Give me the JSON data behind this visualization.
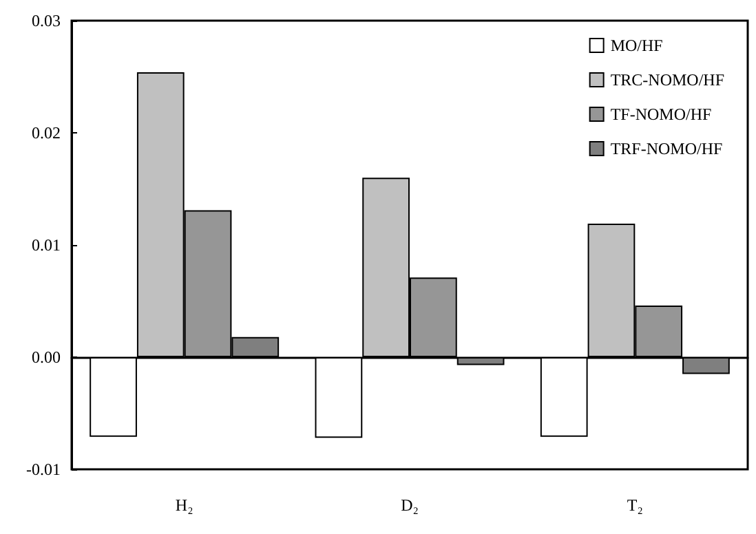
{
  "chart_data": {
    "type": "bar",
    "categories": [
      "H₂",
      "D₂",
      "T₂"
    ],
    "series": [
      {
        "name": "MO/HF",
        "color": "#ffffff",
        "values": [
          -0.0071,
          -0.0072,
          -0.0071
        ]
      },
      {
        "name": "TRC-NOMO/HF",
        "color": "#c0c0c0",
        "values": [
          0.0254,
          0.016,
          0.0119
        ]
      },
      {
        "name": "TF-NOMO/HF",
        "color": "#969696",
        "values": [
          0.0131,
          0.0071,
          0.0046
        ]
      },
      {
        "name": "TRF-NOMO/HF",
        "color": "#7f7f7f",
        "values": [
          0.0018,
          -0.0007,
          -0.0015
        ]
      }
    ],
    "ylim": [
      -0.01,
      0.03
    ],
    "yticks": [
      {
        "value": -0.01,
        "label": "-0.01"
      },
      {
        "value": 0,
        "label": "0.00"
      },
      {
        "value": 0.01,
        "label": "0.01"
      },
      {
        "value": 0.02,
        "label": "0.02"
      },
      {
        "value": 0.03,
        "label": "0.03"
      }
    ],
    "legend": "top right"
  }
}
